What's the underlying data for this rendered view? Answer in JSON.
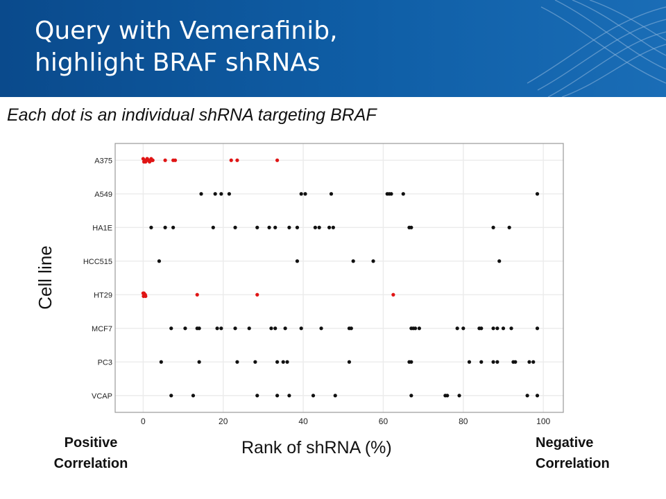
{
  "slide": {
    "title": "Query with Vemerafinib,\nhighlight BRAF shRNAs",
    "subtitle": "Each dot is an individual shRNA targeting BRAF",
    "positive_label": "Positive\nCorrelation",
    "negative_label": "Negative\nCorrelation"
  },
  "chart_data": {
    "type": "scatter",
    "xlabel": "Rank of shRNA (%)",
    "ylabel": "Cell line",
    "xlim": [
      -7,
      105
    ],
    "xticks": [
      0,
      20,
      40,
      60,
      80,
      100
    ],
    "categories": [
      "A375",
      "A549",
      "HA1E",
      "HCC515",
      "HT29",
      "MCF7",
      "PC3",
      "VCAP"
    ],
    "grid": true,
    "colors": {
      "highlight": "#e01515",
      "default": "#111111",
      "grid": "#ececec",
      "frame": "#9a9a9a"
    },
    "series": [
      {
        "category": "A375",
        "color": "highlight",
        "x": [
          0,
          0.3,
          0.6,
          1,
          1.3,
          1.6,
          2,
          2.4,
          0.2,
          1.0,
          2.2,
          5.5,
          7.5,
          8,
          22,
          23.5,
          33.5
        ]
      },
      {
        "category": "A549",
        "color": "default",
        "x": [
          14.5,
          18,
          19.5,
          21.5,
          39.5,
          40.5,
          47,
          61,
          61.5,
          62,
          65,
          98.5
        ]
      },
      {
        "category": "HA1E",
        "color": "default",
        "x": [
          2,
          5.5,
          7.5,
          17.5,
          23,
          28.5,
          31.5,
          33,
          36.5,
          38.5,
          43,
          44,
          46.5,
          47.5,
          66.5,
          67,
          87.5,
          91.5
        ]
      },
      {
        "category": "HCC515",
        "color": "default",
        "x": [
          4,
          38.5,
          52.5,
          57.5,
          89
        ]
      },
      {
        "category": "HT29",
        "color": "highlight",
        "x": [
          0,
          0.3,
          0.6,
          0.2,
          0.5,
          0.1,
          13.5,
          28.5,
          62.5
        ]
      },
      {
        "category": "MCF7",
        "color": "default",
        "x": [
          7,
          10.5,
          13.5,
          14,
          18.5,
          19.5,
          23,
          26.5,
          32,
          33,
          35.5,
          39.5,
          44.5,
          51.5,
          52,
          67,
          67.5,
          68,
          69,
          78.5,
          80,
          84,
          84.5,
          87.5,
          88.5,
          90,
          92,
          98.5
        ]
      },
      {
        "category": "PC3",
        "color": "default",
        "x": [
          4.5,
          14,
          23.5,
          28,
          33.5,
          35,
          36,
          51.5,
          66.5,
          67,
          81.5,
          84.5,
          87.5,
          88.5,
          92.5,
          93,
          96.5,
          97.5
        ]
      },
      {
        "category": "VCAP",
        "color": "default",
        "x": [
          7,
          12.5,
          28.5,
          33.5,
          36.5,
          42.5,
          48,
          67,
          75.5,
          76,
          79,
          96,
          98.5
        ]
      }
    ]
  }
}
